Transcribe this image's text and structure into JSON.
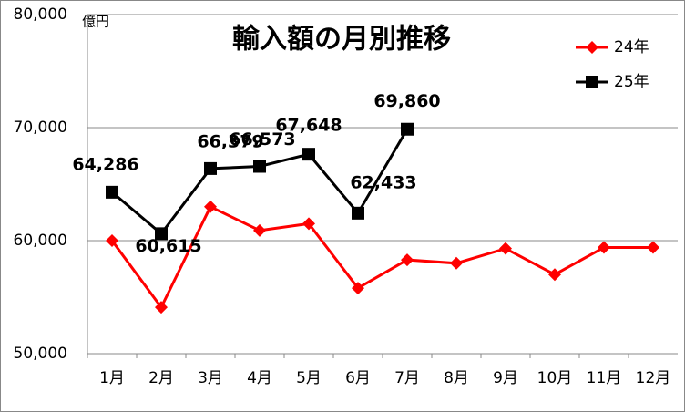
{
  "chart_data": {
    "type": "line",
    "title": "輸入額の月別推移",
    "unit_label": "億円",
    "categories": [
      "1月",
      "2月",
      "3月",
      "4月",
      "5月",
      "6月",
      "7月",
      "8月",
      "9月",
      "10月",
      "11月",
      "12月"
    ],
    "series": [
      {
        "name": "24年",
        "color": "#ff0000",
        "marker": "diamond",
        "values": [
          60000,
          54100,
          63000,
          60900,
          61500,
          55800,
          58300,
          58000,
          59300,
          57000,
          59400,
          59400
        ]
      },
      {
        "name": "25年",
        "color": "#000000",
        "marker": "square",
        "values": [
          64286,
          60615,
          66379,
          66573,
          67648,
          62433,
          69860,
          null,
          null,
          null,
          null,
          null
        ],
        "value_labels": [
          "64,286",
          "60,615",
          "66,379",
          "66,573",
          "67,648",
          "62,433",
          "69,860",
          null,
          null,
          null,
          null,
          null
        ]
      }
    ],
    "ylim": [
      50000,
      80000
    ],
    "yticks": [
      {
        "value": 50000,
        "label": "50,000"
      },
      {
        "value": 60000,
        "label": "60,000"
      },
      {
        "value": 70000,
        "label": "70,000"
      },
      {
        "value": 80000,
        "label": "80,000"
      }
    ],
    "grid": true,
    "legend": "top-right"
  }
}
